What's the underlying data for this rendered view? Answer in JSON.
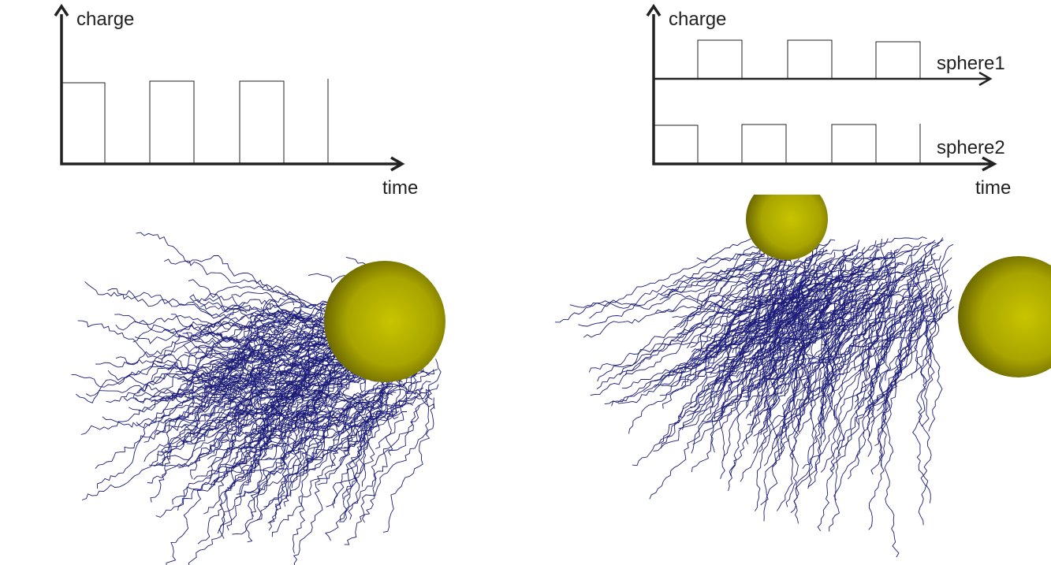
{
  "left_panel": {
    "y_label": "charge",
    "x_label": "time"
  },
  "right_panel": {
    "y_label": "charge",
    "series_labels": [
      "sphere1",
      "sphere2"
    ],
    "x_label": "time"
  }
}
